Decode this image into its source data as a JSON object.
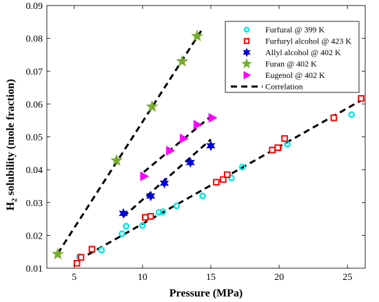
{
  "chart_data": {
    "type": "scatter",
    "xlabel": "Pressure (MPa)",
    "ylabel_main": "H",
    "ylabel_sub": "2",
    "ylabel_rest": " solubility (mole fraction)",
    "xlim": [
      3,
      26.3
    ],
    "ylim": [
      0.01,
      0.09
    ],
    "xticks": [
      5,
      10,
      15,
      20,
      25
    ],
    "yticks": [
      0.01,
      0.02,
      0.03,
      0.04,
      0.05,
      0.06,
      0.07,
      0.08,
      0.09
    ],
    "ytick_labels": [
      "0.01",
      "0.02",
      "0.03",
      "0.04",
      "0.05",
      "0.06",
      "0.07",
      "0.08",
      "0.09"
    ],
    "xtick_labels": [
      "5",
      "10",
      "15",
      "20",
      "25"
    ],
    "grid": false,
    "legend_position": "top-right",
    "series": [
      {
        "name": "Furfural @ 399 K",
        "marker": "circle",
        "color": "#00e5e5",
        "points": [
          [
            5.4,
            0.0135
          ],
          [
            7.0,
            0.0155
          ],
          [
            8.5,
            0.0205
          ],
          [
            8.8,
            0.0228
          ],
          [
            10.0,
            0.023
          ],
          [
            11.2,
            0.027
          ],
          [
            11.5,
            0.0272
          ],
          [
            12.5,
            0.029
          ],
          [
            14.4,
            0.032
          ],
          [
            16.5,
            0.0375
          ],
          [
            17.3,
            0.0408
          ],
          [
            20.0,
            0.0466
          ],
          [
            20.6,
            0.0478
          ],
          [
            25.3,
            0.0568
          ]
        ]
      },
      {
        "name": "Furfuryl alcohol @ 423 K",
        "marker": "square",
        "color": "#ff0000",
        "points": [
          [
            5.2,
            0.0115
          ],
          [
            5.5,
            0.0133
          ],
          [
            6.3,
            0.0158
          ],
          [
            10.2,
            0.0255
          ],
          [
            10.6,
            0.0258
          ],
          [
            15.4,
            0.0362
          ],
          [
            15.9,
            0.037
          ],
          [
            16.2,
            0.0385
          ],
          [
            19.5,
            0.046
          ],
          [
            19.9,
            0.0467
          ],
          [
            20.4,
            0.0495
          ],
          [
            24.0,
            0.0558
          ],
          [
            26.0,
            0.0617
          ]
        ]
      },
      {
        "name": "Allyl alcohol @ 402 K",
        "marker": "hexagram",
        "color": "#0000dd",
        "points": [
          [
            8.6,
            0.0267
          ],
          [
            10.6,
            0.032
          ],
          [
            11.6,
            0.0359
          ],
          [
            13.5,
            0.0422
          ],
          [
            15.0,
            0.0473
          ]
        ]
      },
      {
        "name": "Furan @ 402 K",
        "marker": "pentagram",
        "color": "#77ac30",
        "points": [
          [
            3.8,
            0.0143
          ],
          [
            8.1,
            0.0428
          ],
          [
            10.7,
            0.0592
          ],
          [
            12.9,
            0.073
          ],
          [
            14.0,
            0.0807
          ]
        ]
      },
      {
        "name": "Eugenol @ 402 K",
        "marker": "triangle-right",
        "color": "#ff00ff",
        "points": [
          [
            10.1,
            0.038
          ],
          [
            12.0,
            0.0458
          ],
          [
            13.0,
            0.0495
          ],
          [
            14.0,
            0.0537
          ],
          [
            15.1,
            0.0558
          ]
        ]
      }
    ],
    "correlation": {
      "name": "Correlation",
      "style": "dashed",
      "color": "#000000",
      "lines": [
        [
          [
            3.8,
            0.0145
          ],
          [
            14.4,
            0.083
          ]
        ],
        [
          [
            8.6,
            0.0257
          ],
          [
            15.0,
            0.0492
          ]
        ],
        [
          [
            10.1,
            0.0393
          ],
          [
            15.1,
            0.0566
          ]
        ],
        [
          [
            6.0,
            0.0141
          ],
          [
            26.0,
            0.0611
          ]
        ]
      ]
    }
  }
}
